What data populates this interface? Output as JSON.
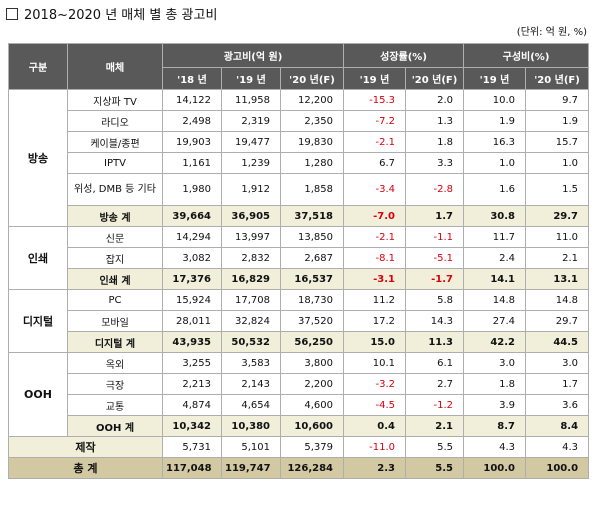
{
  "title": "2018~2020 년 매체 별 총 광고비",
  "unit": "(단위: 억 원, %)",
  "headers": {
    "group": "구분",
    "media": "매체",
    "ad_cost": "광고비(억 원)",
    "growth": "성장률(%)",
    "share": "구성비(%)",
    "y18": "'18 년",
    "y19": "'19 년",
    "y20f": "'20 년(F)",
    "g19": "'19 년",
    "g20f": "'20 년(F)",
    "s19": "'19 년",
    "s20f": "'20 년(F)"
  },
  "groups": {
    "broadcast": "방송",
    "print": "인쇄",
    "digital": "디지털",
    "ooh": "OOH"
  },
  "rows": [
    {
      "media": "지상파 TV",
      "v18": "14,122",
      "v19": "11,958",
      "v20": "12,200",
      "g19": "-15.3",
      "g20": "2.0",
      "s19": "10.0",
      "s20": "9.7"
    },
    {
      "media": "라디오",
      "v18": "2,498",
      "v19": "2,319",
      "v20": "2,350",
      "g19": "-7.2",
      "g20": "1.3",
      "s19": "1.9",
      "s20": "1.9"
    },
    {
      "media": "케이블/종편",
      "v18": "19,903",
      "v19": "19,477",
      "v20": "19,830",
      "g19": "-2.1",
      "g20": "1.8",
      "s19": "16.3",
      "s20": "15.7"
    },
    {
      "media": "IPTV",
      "v18": "1,161",
      "v19": "1,239",
      "v20": "1,280",
      "g19": "6.7",
      "g20": "3.3",
      "s19": "1.0",
      "s20": "1.0"
    },
    {
      "media": "위성, DMB 등 기타",
      "v18": "1,980",
      "v19": "1,912",
      "v20": "1,858",
      "g19": "-3.4",
      "g20": "-2.8",
      "s19": "1.6",
      "s20": "1.5"
    },
    {
      "media": "방송 계",
      "v18": "39,664",
      "v19": "36,905",
      "v20": "37,518",
      "g19": "-7.0",
      "g20": "1.7",
      "s19": "30.8",
      "s20": "29.7"
    },
    {
      "media": "신문",
      "v18": "14,294",
      "v19": "13,997",
      "v20": "13,850",
      "g19": "-2.1",
      "g20": "-1.1",
      "s19": "11.7",
      "s20": "11.0"
    },
    {
      "media": "잡지",
      "v18": "3,082",
      "v19": "2,832",
      "v20": "2,687",
      "g19": "-8.1",
      "g20": "-5.1",
      "s19": "2.4",
      "s20": "2.1"
    },
    {
      "media": "인쇄 계",
      "v18": "17,376",
      "v19": "16,829",
      "v20": "16,537",
      "g19": "-3.1",
      "g20": "-1.7",
      "s19": "14.1",
      "s20": "13.1"
    },
    {
      "media": "PC",
      "v18": "15,924",
      "v19": "17,708",
      "v20": "18,730",
      "g19": "11.2",
      "g20": "5.8",
      "s19": "14.8",
      "s20": "14.8"
    },
    {
      "media": "모바일",
      "v18": "28,011",
      "v19": "32,824",
      "v20": "37,520",
      "g19": "17.2",
      "g20": "14.3",
      "s19": "27.4",
      "s20": "29.7"
    },
    {
      "media": "디지털 계",
      "v18": "43,935",
      "v19": "50,532",
      "v20": "56,250",
      "g19": "15.0",
      "g20": "11.3",
      "s19": "42.2",
      "s20": "44.5"
    },
    {
      "media": "옥외",
      "v18": "3,255",
      "v19": "3,583",
      "v20": "3,800",
      "g19": "10.1",
      "g20": "6.1",
      "s19": "3.0",
      "s20": "3.0"
    },
    {
      "media": "극장",
      "v18": "2,213",
      "v19": "2,143",
      "v20": "2,200",
      "g19": "-3.2",
      "g20": "2.7",
      "s19": "1.8",
      "s20": "1.7"
    },
    {
      "media": "교통",
      "v18": "4,874",
      "v19": "4,654",
      "v20": "4,600",
      "g19": "-4.5",
      "g20": "-1.2",
      "s19": "3.9",
      "s20": "3.6"
    },
    {
      "media": "OOH 계",
      "v18": "10,342",
      "v19": "10,380",
      "v20": "10,600",
      "g19": "0.4",
      "g20": "2.1",
      "s19": "8.7",
      "s20": "8.4"
    },
    {
      "media": "제작",
      "v18": "5,731",
      "v19": "5,101",
      "v20": "5,379",
      "g19": "-11.0",
      "g20": "5.5",
      "s19": "4.3",
      "s20": "4.3"
    },
    {
      "media": "총 계",
      "v18": "117,048",
      "v19": "119,747",
      "v20": "126,284",
      "g19": "2.3",
      "g20": "5.5",
      "s19": "100.0",
      "s20": "100.0"
    }
  ],
  "colors": {
    "header_bg": "#595959",
    "subtotal_bg": "#f1eeda",
    "total_bg": "#d2c8a2",
    "negative_text": "#d8000f"
  }
}
